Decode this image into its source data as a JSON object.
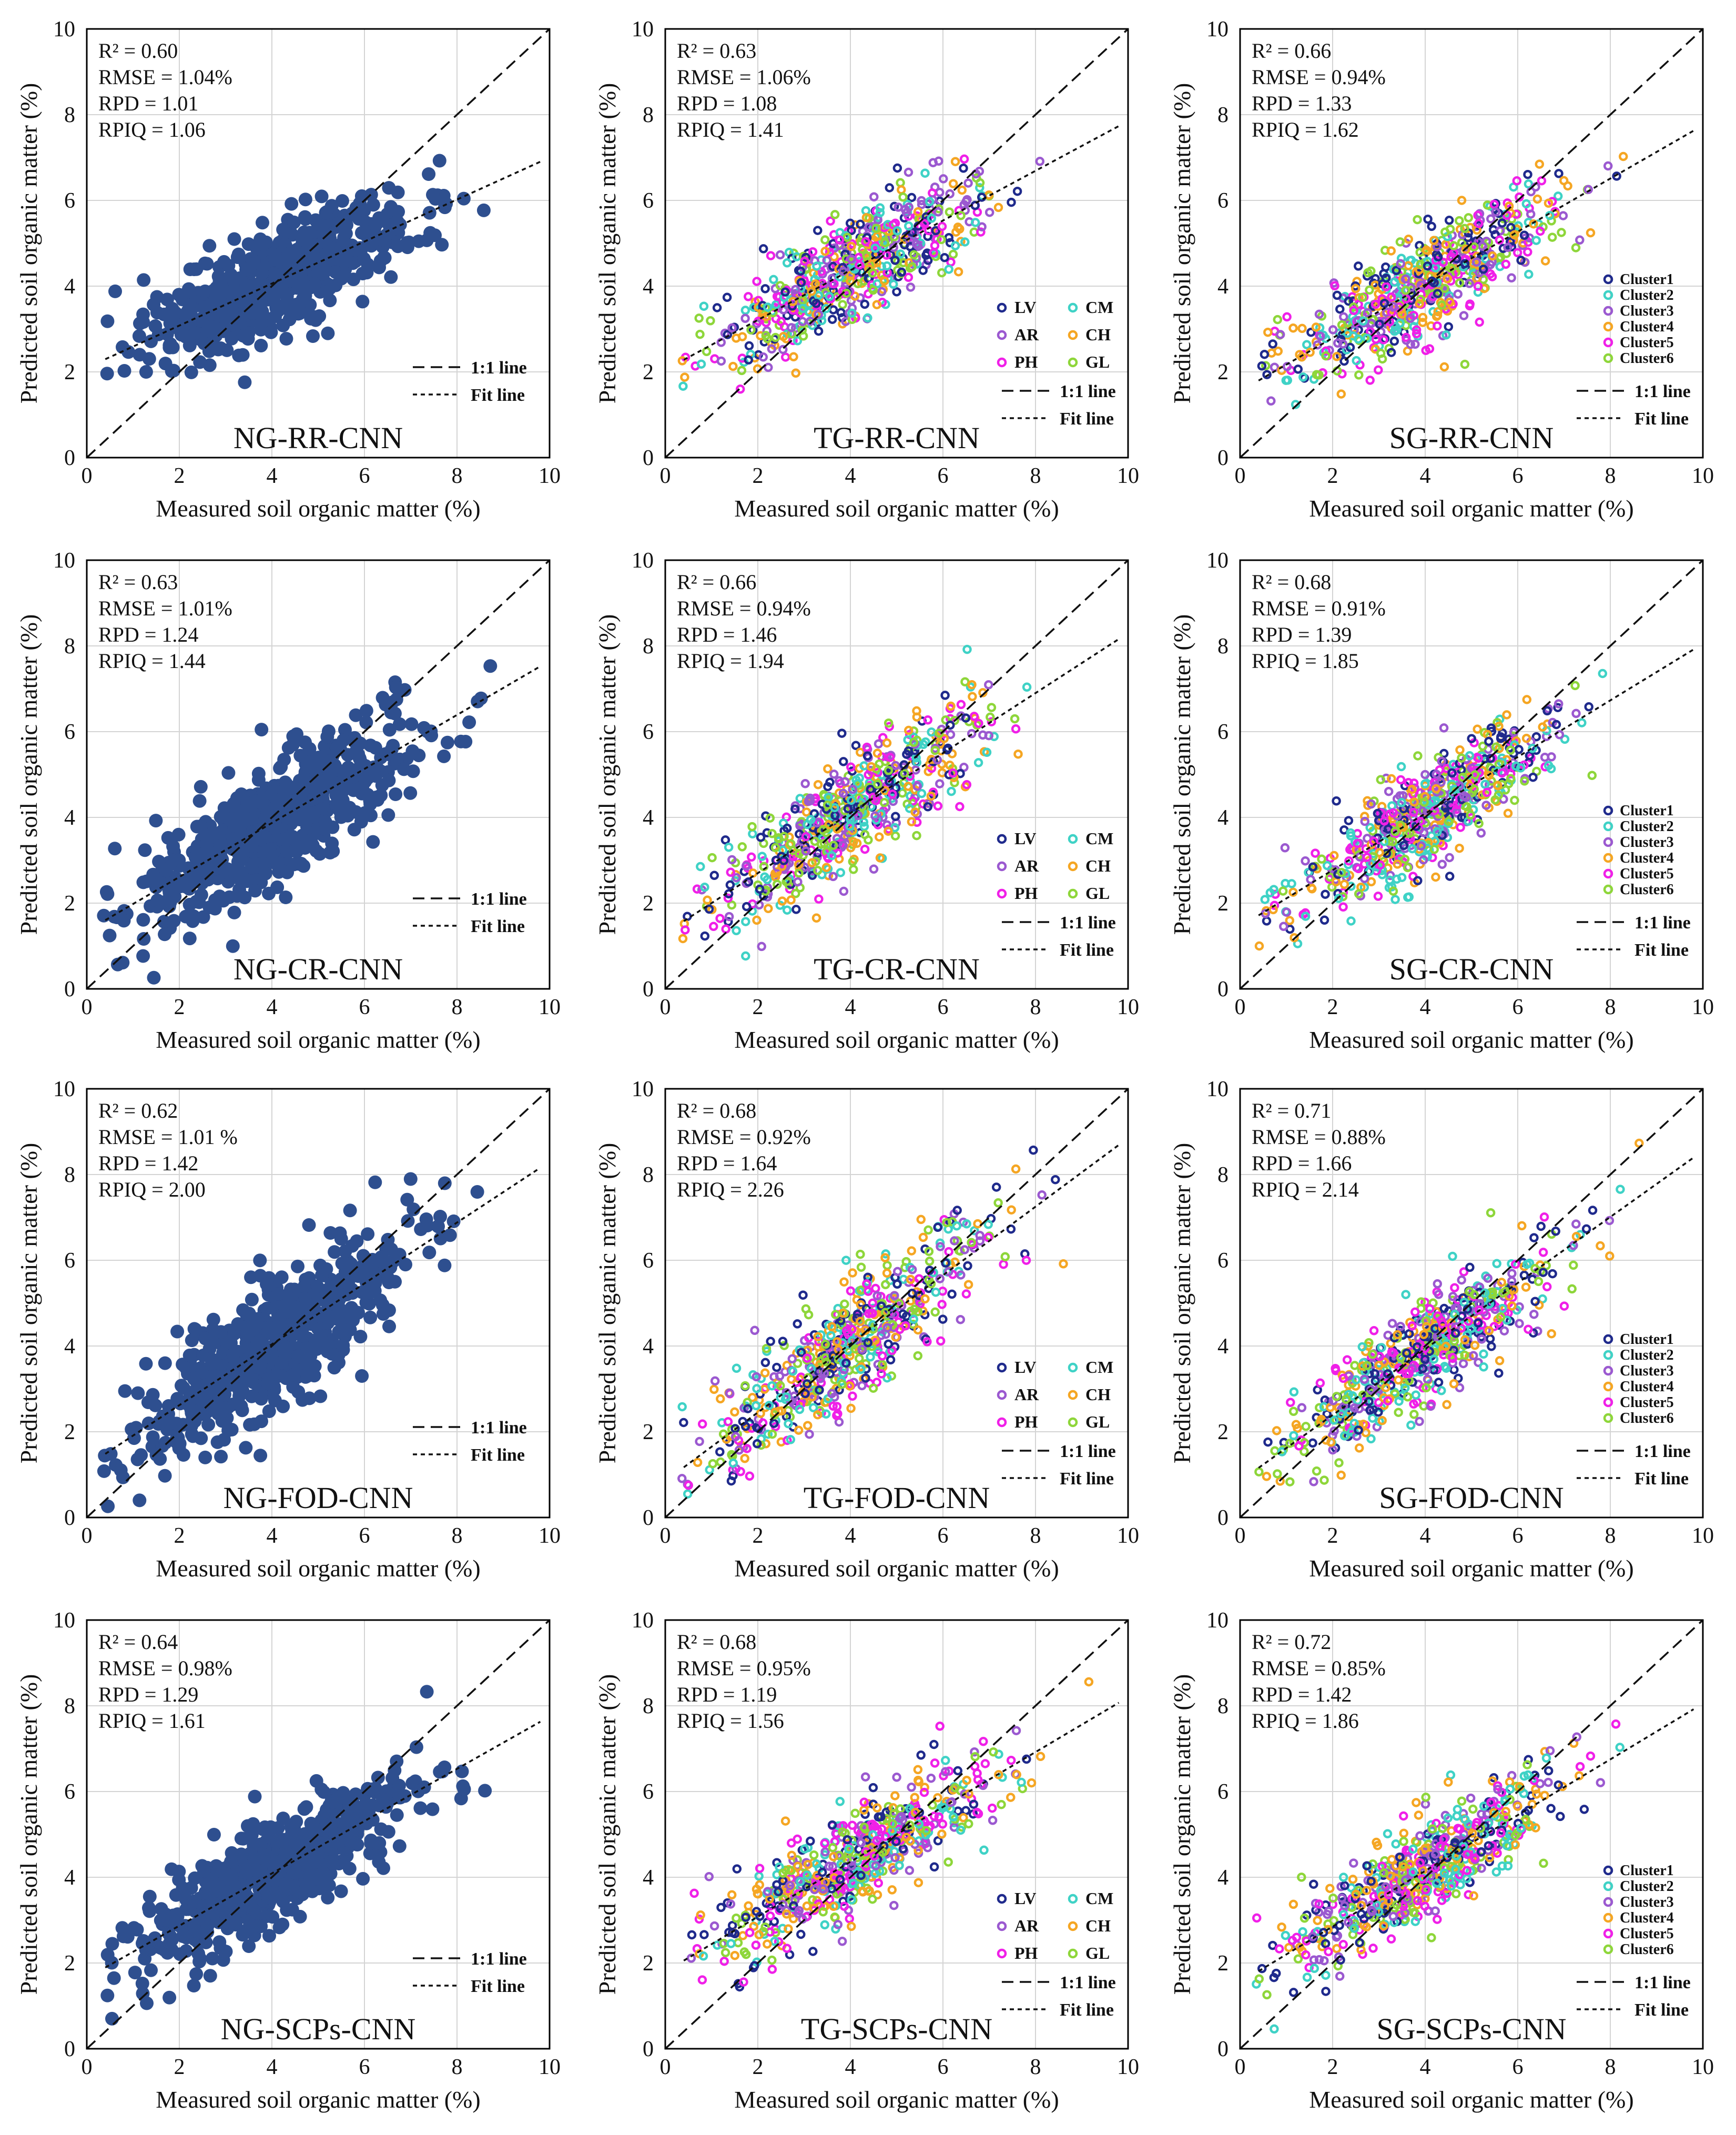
{
  "figure": {
    "x_axis_label": "Measured soil organic matter (%)",
    "y_axis_label": "Predicted soil organic matter (%)",
    "ref_line_label": "1:1 line",
    "fit_line_label": "Fit line",
    "colors": {
      "NG": "#2e4f8f",
      "LV": "#1f2a8c",
      "CM": "#3fd2c6",
      "AR": "#9b59d0",
      "CH": "#f5a623",
      "PH": "#f020e8",
      "GL": "#8ed63a",
      "Cluster1": "#1f2a8c",
      "Cluster2": "#3fd2c6",
      "Cluster3": "#9b59d0",
      "Cluster4": "#f5a623",
      "Cluster5": "#f020e8",
      "Cluster6": "#8ed63a"
    }
  },
  "legend_sets": {
    "soil_types": [
      {
        "key": "LV",
        "label": "LV"
      },
      {
        "key": "CM",
        "label": "CM"
      },
      {
        "key": "AR",
        "label": "AR"
      },
      {
        "key": "CH",
        "label": "CH"
      },
      {
        "key": "PH",
        "label": "PH"
      },
      {
        "key": "GL",
        "label": "GL"
      }
    ],
    "clusters": [
      {
        "key": "Cluster1",
        "label": "Cluster1"
      },
      {
        "key": "Cluster2",
        "label": "Cluster2"
      },
      {
        "key": "Cluster3",
        "label": "Cluster3"
      },
      {
        "key": "Cluster4",
        "label": "Cluster4"
      },
      {
        "key": "Cluster5",
        "label": "Cluster5"
      },
      {
        "key": "Cluster6",
        "label": "Cluster6"
      }
    ]
  },
  "chart_data": [
    {
      "type": "scatter",
      "title": "NG-RR-CNN",
      "group": "NG",
      "xlabel": "Measured soil organic matter (%)",
      "ylabel": "Predicted soil organic matter (%)",
      "xlim": [
        0,
        10
      ],
      "ylim": [
        0,
        10
      ],
      "xticks": [
        0,
        2,
        4,
        6,
        8,
        10
      ],
      "yticks": [
        0,
        2,
        4,
        6,
        8,
        10
      ],
      "grid": true,
      "stats": [
        "R² = 0.60",
        "RMSE = 1.04%",
        "RPD = 1.01",
        "RPIQ = 1.06"
      ],
      "fit_line": {
        "slope": 0.49,
        "intercept": 2.1
      },
      "reference_line": "1:1",
      "point_count": 600,
      "spread": 0.62,
      "legend_position": "bottom-right"
    },
    {
      "type": "scatter",
      "title": "TG-RR-CNN",
      "group": "TG",
      "xlabel": "Measured soil organic matter (%)",
      "ylabel": "Predicted soil organic matter (%)",
      "xlim": [
        0,
        10
      ],
      "ylim": [
        0,
        10
      ],
      "xticks": [
        0,
        2,
        4,
        6,
        8,
        10
      ],
      "yticks": [
        0,
        2,
        4,
        6,
        8,
        10
      ],
      "grid": true,
      "stats": [
        "R² = 0.63",
        "RMSE = 1.06%",
        "RPD = 1.08",
        "RPIQ = 1.41"
      ],
      "fit_line": {
        "slope": 0.58,
        "intercept": 2.05
      },
      "reference_line": "1:1",
      "point_count": 600,
      "spread": 0.6,
      "legend_position": "bottom-right"
    },
    {
      "type": "scatter",
      "title": "SG-RR-CNN",
      "group": "SG",
      "xlabel": "Measured soil organic matter (%)",
      "ylabel": "Predicted soil organic matter (%)",
      "xlim": [
        0,
        10
      ],
      "ylim": [
        0,
        10
      ],
      "xticks": [
        0,
        2,
        4,
        6,
        8,
        10
      ],
      "yticks": [
        0,
        2,
        4,
        6,
        8,
        10
      ],
      "grid": true,
      "stats": [
        "R² = 0.66",
        "RMSE = 0.94%",
        "RPD = 1.33",
        "RPIQ = 1.62"
      ],
      "fit_line": {
        "slope": 0.62,
        "intercept": 1.55
      },
      "reference_line": "1:1",
      "point_count": 600,
      "spread": 0.6,
      "legend_position": "bottom-right"
    },
    {
      "type": "scatter",
      "title": "NG-CR-CNN",
      "group": "NG",
      "xlabel": "Measured soil organic matter (%)",
      "ylabel": "Predicted soil organic matter (%)",
      "xlim": [
        0,
        10
      ],
      "ylim": [
        0,
        10
      ],
      "xticks": [
        0,
        2,
        4,
        6,
        8,
        10
      ],
      "yticks": [
        0,
        2,
        4,
        6,
        8,
        10
      ],
      "grid": true,
      "stats": [
        "R² = 0.63",
        "RMSE = 1.01%",
        "RPD = 1.24",
        "RPIQ = 1.44"
      ],
      "fit_line": {
        "slope": 0.63,
        "intercept": 1.35
      },
      "reference_line": "1:1",
      "point_count": 600,
      "spread": 0.7,
      "legend_position": "bottom-right"
    },
    {
      "type": "scatter",
      "title": "TG-CR-CNN",
      "group": "TG",
      "xlabel": "Measured soil organic matter (%)",
      "ylabel": "Predicted soil organic matter (%)",
      "xlim": [
        0,
        10
      ],
      "ylim": [
        0,
        10
      ],
      "xticks": [
        0,
        2,
        4,
        6,
        8,
        10
      ],
      "yticks": [
        0,
        2,
        4,
        6,
        8,
        10
      ],
      "grid": true,
      "stats": [
        "R² = 0.66",
        "RMSE = 0.94%",
        "RPD = 1.46",
        "RPIQ = 1.94"
      ],
      "fit_line": {
        "slope": 0.7,
        "intercept": 1.3
      },
      "reference_line": "1:1",
      "point_count": 600,
      "spread": 0.65,
      "legend_position": "bottom-right"
    },
    {
      "type": "scatter",
      "title": "SG-CR-CNN",
      "group": "SG",
      "xlabel": "Measured soil organic matter (%)",
      "ylabel": "Predicted soil organic matter (%)",
      "xlim": [
        0,
        10
      ],
      "ylim": [
        0,
        10
      ],
      "xticks": [
        0,
        2,
        4,
        6,
        8,
        10
      ],
      "yticks": [
        0,
        2,
        4,
        6,
        8,
        10
      ],
      "grid": true,
      "stats": [
        "R² = 0.68",
        "RMSE = 0.91%",
        "RPD = 1.39",
        "RPIQ = 1.85"
      ],
      "fit_line": {
        "slope": 0.66,
        "intercept": 1.45
      },
      "reference_line": "1:1",
      "point_count": 600,
      "spread": 0.6,
      "legend_position": "bottom-right"
    },
    {
      "type": "scatter",
      "title": "NG-FOD-CNN",
      "group": "NG",
      "xlabel": "Measured soil organic matter (%)",
      "ylabel": "Predicted soil organic matter (%)",
      "xlim": [
        0,
        10
      ],
      "ylim": [
        0,
        10
      ],
      "xticks": [
        0,
        2,
        4,
        6,
        8,
        10
      ],
      "yticks": [
        0,
        2,
        4,
        6,
        8,
        10
      ],
      "grid": true,
      "stats": [
        "R² = 0.62",
        "RMSE = 1.01 %",
        "RPD = 1.42",
        "RPIQ = 2.00"
      ],
      "fit_line": {
        "slope": 0.71,
        "intercept": 1.2
      },
      "reference_line": "1:1",
      "point_count": 600,
      "spread": 0.75,
      "legend_position": "bottom-right"
    },
    {
      "type": "scatter",
      "title": "TG-FOD-CNN",
      "group": "TG",
      "xlabel": "Measured soil organic matter (%)",
      "ylabel": "Predicted soil organic matter (%)",
      "xlim": [
        0,
        10
      ],
      "ylim": [
        0,
        10
      ],
      "xticks": [
        0,
        2,
        4,
        6,
        8,
        10
      ],
      "yticks": [
        0,
        2,
        4,
        6,
        8,
        10
      ],
      "grid": true,
      "stats": [
        "R² = 0.68",
        "RMSE = 0.92%",
        "RPD = 1.64",
        "RPIQ = 2.26"
      ],
      "fit_line": {
        "slope": 0.8,
        "intercept": 0.85
      },
      "reference_line": "1:1",
      "point_count": 600,
      "spread": 0.65,
      "legend_position": "bottom-right"
    },
    {
      "type": "scatter",
      "title": "SG-FOD-CNN",
      "group": "SG",
      "xlabel": "Measured soil organic matter (%)",
      "ylabel": "Predicted soil organic matter (%)",
      "xlim": [
        0,
        10
      ],
      "ylim": [
        0,
        10
      ],
      "xticks": [
        0,
        2,
        4,
        6,
        8,
        10
      ],
      "yticks": [
        0,
        2,
        4,
        6,
        8,
        10
      ],
      "grid": true,
      "stats": [
        "R² = 0.71",
        "RMSE = 0.88%",
        "RPD = 1.66",
        "RPIQ = 2.14"
      ],
      "fit_line": {
        "slope": 0.77,
        "intercept": 0.85
      },
      "reference_line": "1:1",
      "point_count": 600,
      "spread": 0.6,
      "legend_position": "bottom-right"
    },
    {
      "type": "scatter",
      "title": "NG-SCPs-CNN",
      "group": "NG",
      "xlabel": "Measured soil organic matter (%)",
      "ylabel": "Predicted soil organic matter (%)",
      "xlim": [
        0,
        10
      ],
      "ylim": [
        0,
        10
      ],
      "xticks": [
        0,
        2,
        4,
        6,
        8,
        10
      ],
      "yticks": [
        0,
        2,
        4,
        6,
        8,
        10
      ],
      "grid": true,
      "stats": [
        "R² = 0.64",
        "RMSE = 0.98%",
        "RPD = 1.29",
        "RPIQ = 1.61"
      ],
      "fit_line": {
        "slope": 0.61,
        "intercept": 1.65
      },
      "reference_line": "1:1",
      "point_count": 600,
      "spread": 0.6,
      "legend_position": "bottom-right"
    },
    {
      "type": "scatter",
      "title": "TG-SCPs-CNN",
      "group": "TG",
      "xlabel": "Measured soil organic matter (%)",
      "ylabel": "Predicted soil organic matter (%)",
      "xlim": [
        0,
        10
      ],
      "ylim": [
        0,
        10
      ],
      "xticks": [
        0,
        2,
        4,
        6,
        8,
        10
      ],
      "yticks": [
        0,
        2,
        4,
        6,
        8,
        10
      ],
      "grid": true,
      "stats": [
        "R² = 0.68",
        "RMSE = 0.95%",
        "RPD = 1.19",
        "RPIQ = 1.56"
      ],
      "fit_line": {
        "slope": 0.64,
        "intercept": 1.8
      },
      "reference_line": "1:1",
      "point_count": 600,
      "spread": 0.6,
      "legend_position": "bottom-right"
    },
    {
      "type": "scatter",
      "title": "SG-SCPs-CNN",
      "group": "SG",
      "xlabel": "Measured soil organic matter (%)",
      "ylabel": "Predicted soil organic matter (%)",
      "xlim": [
        0,
        10
      ],
      "ylim": [
        0,
        10
      ],
      "xticks": [
        0,
        2,
        4,
        6,
        8,
        10
      ],
      "yticks": [
        0,
        2,
        4,
        6,
        8,
        10
      ],
      "grid": true,
      "stats": [
        "R² = 0.72",
        "RMSE = 0.85%",
        "RPD = 1.42",
        "RPIQ = 1.86"
      ],
      "fit_line": {
        "slope": 0.65,
        "intercept": 1.55
      },
      "reference_line": "1:1",
      "point_count": 600,
      "spread": 0.55,
      "legend_position": "bottom-right"
    }
  ]
}
